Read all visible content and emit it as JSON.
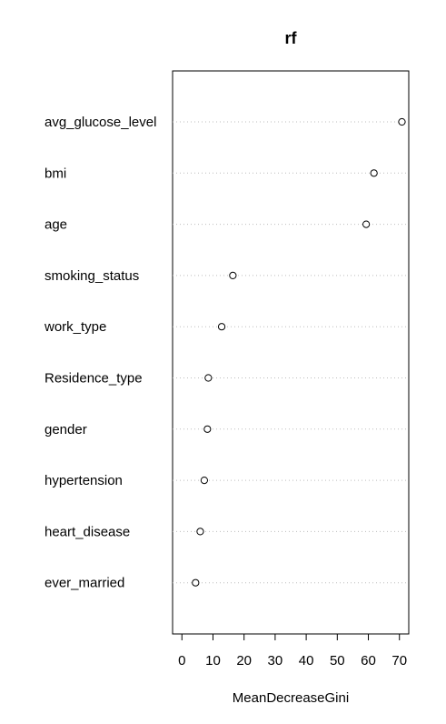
{
  "chart_data": {
    "type": "dotchart",
    "title": "rf",
    "xlabel": "MeanDecreaseGini",
    "ylabel": "",
    "xlim": [
      -3,
      73
    ],
    "xticks": [
      0,
      10,
      20,
      30,
      40,
      50,
      60,
      70
    ],
    "grid": "dotted horizontal guide lines",
    "categories": [
      "avg_glucose_level",
      "bmi",
      "age",
      "smoking_status",
      "work_type",
      "Residence_type",
      "gender",
      "hypertension",
      "heart_disease",
      "ever_married"
    ],
    "values": [
      70.8,
      61.8,
      59.3,
      16.4,
      12.8,
      8.5,
      8.2,
      7.2,
      5.9,
      4.4
    ]
  }
}
